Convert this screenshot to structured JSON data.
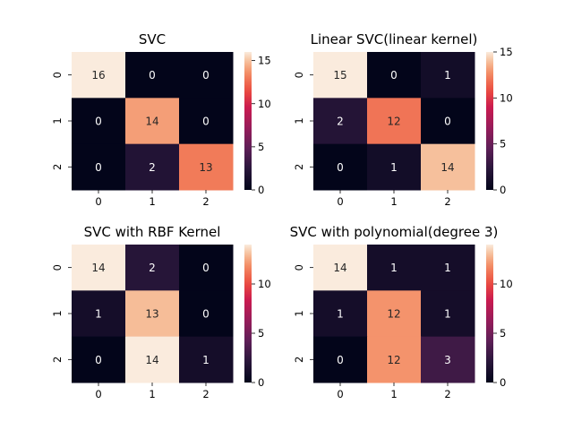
{
  "chart_data": [
    {
      "type": "heatmap",
      "title": "SVC",
      "x_ticks": [
        "0",
        "1",
        "2"
      ],
      "y_ticks": [
        "0",
        "1",
        "2"
      ],
      "values": [
        [
          16,
          0,
          0
        ],
        [
          0,
          14,
          0
        ],
        [
          0,
          2,
          13
        ]
      ],
      "vmin": 0,
      "vmax": 16,
      "colorbar_ticks": [
        0,
        5,
        10,
        15
      ]
    },
    {
      "type": "heatmap",
      "title": "Linear SVC(linear kernel)",
      "x_ticks": [
        "0",
        "1",
        "2"
      ],
      "y_ticks": [
        "0",
        "1",
        "2"
      ],
      "values": [
        [
          15,
          0,
          1
        ],
        [
          2,
          12,
          0
        ],
        [
          0,
          1,
          14
        ]
      ],
      "vmin": 0,
      "vmax": 15,
      "colorbar_ticks": [
        0,
        5,
        10,
        15
      ]
    },
    {
      "type": "heatmap",
      "title": "SVC with RBF Kernel",
      "x_ticks": [
        "0",
        "1",
        "2"
      ],
      "y_ticks": [
        "0",
        "1",
        "2"
      ],
      "values": [
        [
          14,
          2,
          0
        ],
        [
          1,
          13,
          0
        ],
        [
          0,
          14,
          1
        ]
      ],
      "vmin": 0,
      "vmax": 14,
      "colorbar_ticks": [
        0,
        5,
        10
      ]
    },
    {
      "type": "heatmap",
      "title": "SVC with polynomial(degree 3)",
      "x_ticks": [
        "0",
        "1",
        "2"
      ],
      "y_ticks": [
        "0",
        "1",
        "2"
      ],
      "values": [
        [
          14,
          1,
          1
        ],
        [
          1,
          12,
          1
        ],
        [
          0,
          12,
          3
        ]
      ],
      "vmin": 0,
      "vmax": 14,
      "colorbar_ticks": [
        0,
        5,
        10
      ]
    }
  ],
  "colormap": "rocket"
}
